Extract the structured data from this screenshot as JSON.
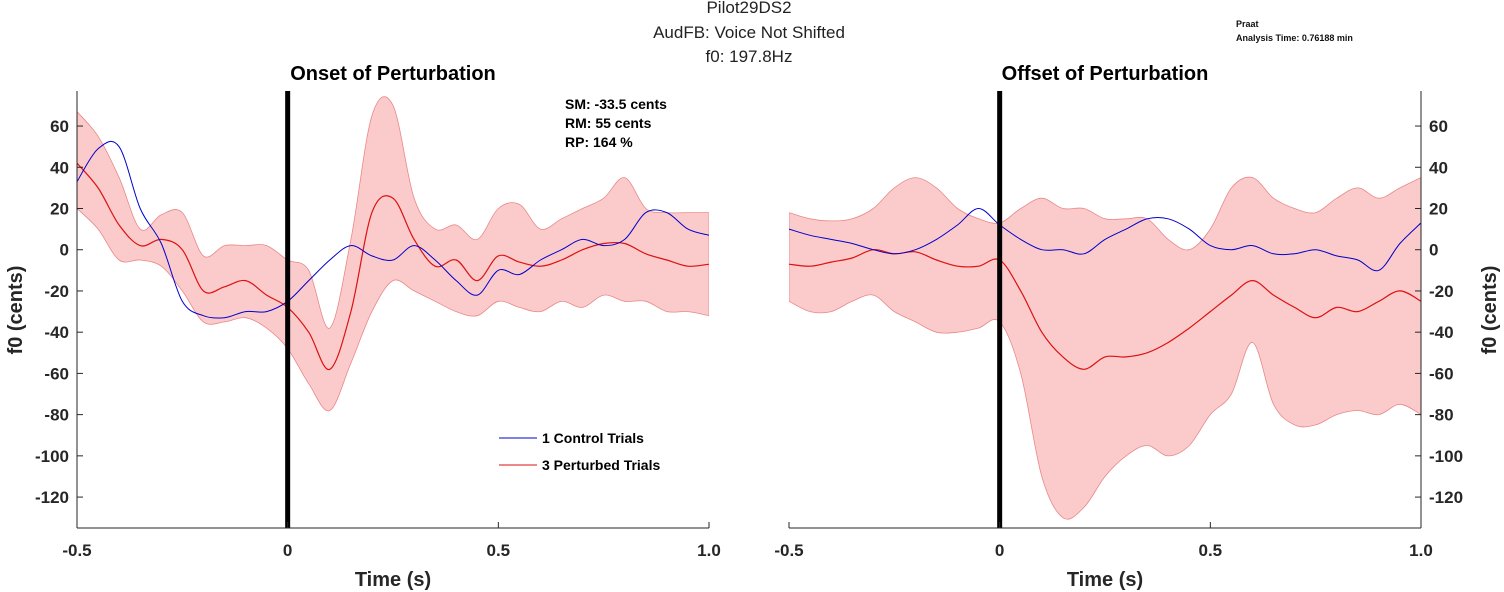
{
  "figure": {
    "title_lines": [
      "Pilot29DS2",
      "AudFB: Voice Not Shifted",
      "f0: 197.8Hz"
    ],
    "corner_lines": [
      "Praat",
      "Analysis Time: 0.76188 min"
    ]
  },
  "colors": {
    "control": "#0000cc",
    "perturbed": "#dd1111",
    "band": "#f9a8a8",
    "band_edge": "#e88888",
    "marker": "#000000",
    "axis": "#262626"
  },
  "chart_data": [
    {
      "type": "line",
      "title": "Onset of Perturbation",
      "xlabel": "Time (s)",
      "ylabel": "f0 (cents)",
      "ylabel_side": "left",
      "xlim": [
        -0.5,
        1.0
      ],
      "ylim": [
        -135,
        77
      ],
      "xticks": [
        -0.5,
        0,
        0.5,
        1.0
      ],
      "xtick_labels": [
        "-0.5",
        "0",
        "0.5",
        "1.0"
      ],
      "yticks": [
        60,
        40,
        20,
        0,
        -20,
        -40,
        -60,
        -80,
        -100,
        -120
      ],
      "ytick_labels": [
        "60",
        "40",
        "20",
        "0",
        "-20",
        "-40",
        "-60",
        "-80",
        "-100",
        "-120"
      ],
      "marker_x": 0,
      "annotations": [
        "SM: -33.5 cents",
        "RM: 55 cents",
        "RP: 164 %"
      ],
      "legend": {
        "position": "lower-right",
        "entries": [
          "1 Control Trials",
          "3 Perturbed Trials"
        ]
      },
      "x": [
        -0.5,
        -0.45,
        -0.4,
        -0.35,
        -0.3,
        -0.25,
        -0.2,
        -0.15,
        -0.1,
        -0.05,
        0,
        0.05,
        0.1,
        0.15,
        0.2,
        0.25,
        0.3,
        0.35,
        0.4,
        0.45,
        0.5,
        0.55,
        0.6,
        0.65,
        0.7,
        0.75,
        0.8,
        0.85,
        0.9,
        0.95,
        1.0
      ],
      "series": [
        {
          "name": "1 Control Trials",
          "color": "#0000cc",
          "values": [
            33,
            49,
            50,
            20,
            3,
            -25,
            -32,
            -33,
            -30,
            -30,
            -25,
            -15,
            -5,
            2,
            -3,
            -5,
            2,
            -5,
            -15,
            -22,
            -10,
            -12,
            -5,
            0,
            5,
            2,
            5,
            18,
            18,
            10,
            7
          ]
        },
        {
          "name": "3 Perturbed Trials",
          "color": "#dd1111",
          "values": [
            42,
            30,
            12,
            2,
            5,
            0,
            -20,
            -18,
            -15,
            -22,
            -28,
            -40,
            -58,
            -30,
            18,
            25,
            5,
            -8,
            -5,
            -15,
            -3,
            -6,
            -8,
            -5,
            0,
            3,
            3,
            -2,
            -5,
            -8,
            -7
          ],
          "upper": [
            67,
            55,
            35,
            10,
            17,
            18,
            -3,
            2,
            2,
            2,
            -5,
            -10,
            -38,
            5,
            65,
            70,
            25,
            10,
            12,
            5,
            20,
            22,
            10,
            15,
            20,
            25,
            35,
            20,
            18,
            18,
            18
          ],
          "lower": [
            20,
            10,
            -5,
            -5,
            -8,
            -20,
            -35,
            -35,
            -33,
            -38,
            -48,
            -65,
            -78,
            -55,
            -30,
            -15,
            -20,
            -25,
            -30,
            -32,
            -25,
            -28,
            -30,
            -25,
            -28,
            -22,
            -25,
            -25,
            -30,
            -30,
            -32
          ]
        }
      ]
    },
    {
      "type": "line",
      "title": "Offset of Perturbation",
      "xlabel": "Time (s)",
      "ylabel": "f0 (cents)",
      "ylabel_side": "right",
      "xlim": [
        -0.5,
        1.0
      ],
      "ylim": [
        -135,
        77
      ],
      "xticks": [
        -0.5,
        0,
        0.5,
        1.0
      ],
      "xtick_labels": [
        "-0.5",
        "0",
        "0.5",
        "1.0"
      ],
      "yticks": [
        60,
        40,
        20,
        0,
        -20,
        -40,
        -60,
        -80,
        -100,
        -120
      ],
      "ytick_labels": [
        "60",
        "40",
        "20",
        "0",
        "-20",
        "-40",
        "-60",
        "-80",
        "-100",
        "-120"
      ],
      "marker_x": 0,
      "x": [
        -0.5,
        -0.45,
        -0.4,
        -0.35,
        -0.3,
        -0.25,
        -0.2,
        -0.15,
        -0.1,
        -0.05,
        0,
        0.05,
        0.1,
        0.15,
        0.2,
        0.25,
        0.3,
        0.35,
        0.4,
        0.45,
        0.5,
        0.55,
        0.6,
        0.65,
        0.7,
        0.75,
        0.8,
        0.85,
        0.9,
        0.95,
        1.0
      ],
      "series": [
        {
          "name": "1 Control Trials",
          "color": "#0000cc",
          "values": [
            10,
            7,
            5,
            3,
            0,
            -2,
            0,
            5,
            12,
            20,
            12,
            5,
            0,
            0,
            -2,
            5,
            10,
            15,
            15,
            10,
            2,
            0,
            2,
            -2,
            -2,
            0,
            -3,
            -5,
            -10,
            3,
            13
          ]
        },
        {
          "name": "3 Perturbed Trials",
          "color": "#dd1111",
          "values": [
            -7,
            -8,
            -6,
            -4,
            0,
            -2,
            -1,
            -5,
            -8,
            -8,
            -5,
            -20,
            -40,
            -52,
            -58,
            -52,
            -52,
            -50,
            -45,
            -38,
            -30,
            -22,
            -15,
            -22,
            -28,
            -33,
            -28,
            -30,
            -25,
            -20,
            -25
          ],
          "upper": [
            18,
            15,
            14,
            15,
            20,
            30,
            35,
            30,
            20,
            15,
            13,
            20,
            25,
            20,
            20,
            15,
            15,
            15,
            5,
            0,
            10,
            30,
            35,
            25,
            20,
            18,
            25,
            30,
            25,
            30,
            35
          ],
          "lower": [
            -25,
            -30,
            -30,
            -25,
            -22,
            -30,
            -35,
            -40,
            -40,
            -38,
            -35,
            -60,
            -110,
            -130,
            -125,
            -110,
            -100,
            -95,
            -100,
            -95,
            -80,
            -70,
            -45,
            -75,
            -85,
            -85,
            -80,
            -78,
            -80,
            -75,
            -80
          ]
        }
      ]
    }
  ]
}
